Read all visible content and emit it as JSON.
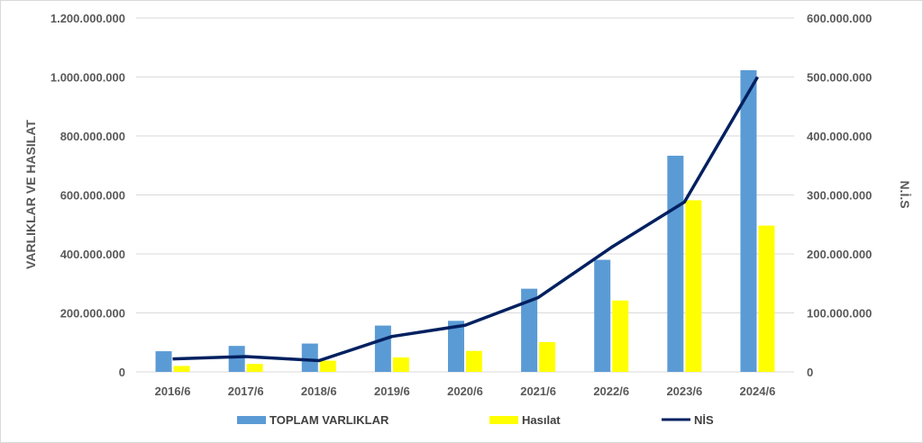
{
  "chart_data": {
    "type": "bar",
    "categories": [
      "2016/6",
      "2017/6",
      "2018/6",
      "2019/6",
      "2020/6",
      "2021/6",
      "2022/6",
      "2023/6",
      "2024/6"
    ],
    "series": [
      {
        "name": "TOPLAM VARLIKLAR",
        "type": "bar",
        "axis": "left",
        "color": "#5b9bd5",
        "values": [
          70000000,
          88000000,
          96000000,
          157000000,
          173000000,
          282000000,
          380000000,
          733000000,
          1023000000
        ]
      },
      {
        "name": "Hasılat",
        "type": "bar",
        "axis": "left",
        "color": "#ffff00",
        "values": [
          20000000,
          27000000,
          38000000,
          49000000,
          71000000,
          101000000,
          242000000,
          582000000,
          496000000
        ]
      },
      {
        "name": "NİS",
        "type": "line",
        "axis": "right",
        "color": "#002060",
        "values": [
          22000000,
          26000000,
          19000000,
          60000000,
          79000000,
          126000000,
          211000000,
          288000000,
          500000000
        ]
      }
    ],
    "ylabel": "VARLIKLAR VE HASILAT",
    "y2label": "N.İ.S",
    "ylim": [
      0,
      1200000000
    ],
    "y2lim": [
      0,
      600000000
    ],
    "yticks": [
      "0",
      "200.000.000",
      "400.000.000",
      "600.000.000",
      "800.000.000",
      "1.000.000.000",
      "1.200.000.000"
    ],
    "y2ticks": [
      "0",
      "100.000.000",
      "200.000.000",
      "300.000.000",
      "400.000.000",
      "500.000.000",
      "600.000.000"
    ],
    "grid": true,
    "legend_position": "bottom"
  }
}
